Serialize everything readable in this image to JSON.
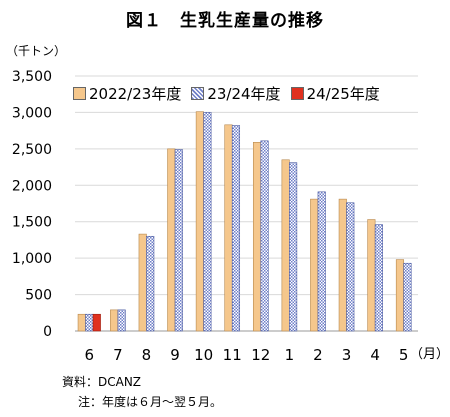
{
  "title": "図１　生乳生産量の推移",
  "unit_label": "（千トン）",
  "x_unit_label": "（月）",
  "source_note": "資料：DCANZ",
  "period_note": "注：年度は６月～翌５月。",
  "colors": {
    "s1": "#F5C78C",
    "s2": "#7F8FD0",
    "s3": "#E0301E",
    "grid": "#D9D9D9",
    "s1_edge": "#B8894E",
    "s2_edge": "#4A5AA0",
    "s3_edge": "#9A1E10"
  },
  "chart_data": {
    "type": "bar",
    "title": "図１　生乳生産量の推移",
    "ylabel": "（千トン）",
    "xlabel": "（月）",
    "ylim": [
      0,
      3500
    ],
    "yticks": [
      0,
      500,
      1000,
      1500,
      2000,
      2500,
      3000,
      3500
    ],
    "ytick_labels": [
      "0",
      "500",
      "1,000",
      "1,500",
      "2,000",
      "2,500",
      "3,000",
      "3,500"
    ],
    "categories": [
      "6",
      "7",
      "8",
      "9",
      "10",
      "11",
      "12",
      "1",
      "2",
      "3",
      "4",
      "5"
    ],
    "series": [
      {
        "name": "2022/23年度",
        "values": [
          230,
          290,
          1330,
          2500,
          3010,
          2830,
          2590,
          2350,
          1810,
          1810,
          1530,
          980
        ]
      },
      {
        "name": "23/24年度",
        "values": [
          230,
          290,
          1300,
          2490,
          3000,
          2820,
          2610,
          2310,
          1910,
          1760,
          1460,
          930
        ]
      },
      {
        "name": "24/25年度",
        "values": [
          230,
          null,
          null,
          null,
          null,
          null,
          null,
          null,
          null,
          null,
          null,
          null
        ]
      }
    ],
    "grid": true,
    "legend_position": "top"
  }
}
